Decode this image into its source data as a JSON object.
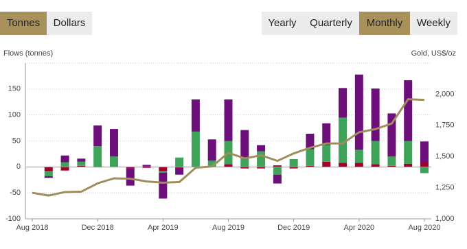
{
  "toggles": {
    "unit": [
      "Tonnes",
      "Dollars"
    ],
    "unit_active": 0,
    "period": [
      "Yearly",
      "Quarterly",
      "Monthly",
      "Weekly"
    ],
    "period_active": 2
  },
  "chart_data": {
    "type": "bar",
    "stacked": true,
    "y_label": "Flows (tonnes)",
    "y2_label": "Gold, US$/oz",
    "categories": [
      "Aug 2018",
      null,
      null,
      null,
      "Dec 2018",
      null,
      null,
      null,
      "Apr 2019",
      null,
      null,
      null,
      "Aug 2019",
      null,
      null,
      null,
      "Dec 2019",
      null,
      null,
      null,
      "Apr 2020",
      null,
      null,
      null,
      "Aug 2020"
    ],
    "series": [
      {
        "color": "#a0002a",
        "values": [
          0,
          -8,
          -7,
          2,
          -1,
          0,
          -3,
          -2,
          -8,
          -2,
          0,
          0,
          5,
          -3,
          -3,
          3,
          -3,
          2,
          10,
          8,
          8,
          5,
          2,
          6,
          9
        ]
      },
      {
        "color": "#3fa35a",
        "values": [
          0,
          -10,
          9,
          8,
          40,
          20,
          0,
          0,
          -3,
          18,
          68,
          12,
          45,
          18,
          30,
          -15,
          15,
          32,
          32,
          87,
          25,
          45,
          18,
          44,
          -12
        ]
      },
      {
        "color": "#6c0f7a",
        "values": [
          0,
          -3,
          13,
          6,
          40,
          53,
          -33,
          4,
          -50,
          -13,
          62,
          41,
          80,
          53,
          12,
          -17,
          0,
          30,
          42,
          57,
          145,
          101,
          83,
          117,
          40
        ]
      },
      {
        "type": "line",
        "axis": "y2",
        "color": "#a08d5c",
        "values": [
          1209,
          1187,
          1215,
          1218,
          1285,
          1325,
          1322,
          1300,
          1290,
          1295,
          1410,
          1420,
          1530,
          1485,
          1510,
          1465,
          1525,
          1570,
          1605,
          1605,
          1695,
          1720,
          1765,
          1960,
          1955
        ]
      }
    ],
    "ylim": [
      -100,
      200
    ],
    "yticks": [
      -100,
      -50,
      0,
      50,
      100,
      150
    ],
    "y2lim": [
      1000,
      2250
    ],
    "y2ticks": [
      {
        "value": 1000,
        "label": "1,000"
      },
      {
        "value": 1250,
        "label": "1,250"
      },
      {
        "value": 1500,
        "label": "1,500"
      },
      {
        "value": 1750,
        "label": "1,750"
      },
      {
        "value": 2000,
        "label": "2,000"
      }
    ],
    "grid": true
  }
}
